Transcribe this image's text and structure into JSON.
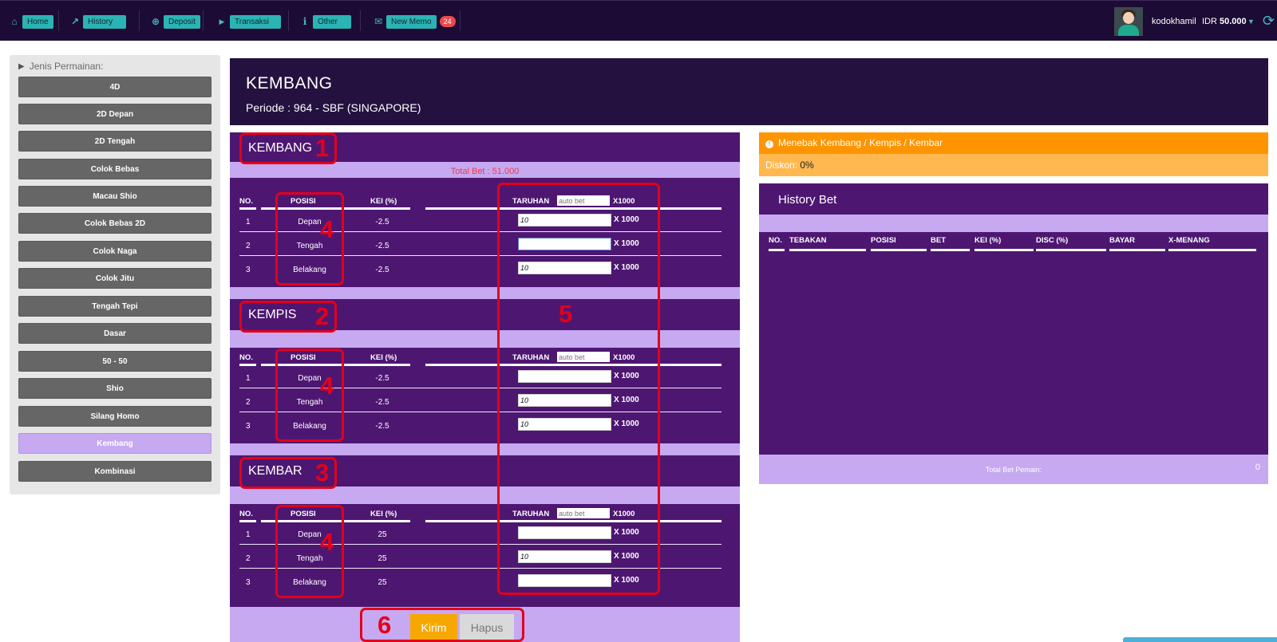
{
  "nav": {
    "items": [
      {
        "label": "Home",
        "icon": "home-icon",
        "glyph": "⌂"
      },
      {
        "label": "History",
        "icon": "chart-line-icon",
        "glyph": "↗"
      },
      {
        "label": "Deposit",
        "icon": "plus-circle-icon",
        "glyph": "⊕"
      },
      {
        "label": "Transaksi",
        "icon": "play-icon",
        "glyph": "▶"
      },
      {
        "label": "Other",
        "icon": "info-icon",
        "glyph": "i"
      },
      {
        "label": "New Memo",
        "icon": "envelope-icon",
        "glyph": "✉"
      }
    ],
    "memo_count": "24",
    "username": "kodokhamil",
    "currency": "IDR",
    "balance": "50.000"
  },
  "sidebar": {
    "heading": "Jenis Permainan:",
    "items": [
      "4D",
      "2D Depan",
      "2D Tengah",
      "Colok Bebas",
      "Macau Shio",
      "Colok Bebas 2D",
      "Colok Naga",
      "Colok Jitu",
      "Tengah Tepi",
      "Dasar",
      "50 - 50",
      "Shio",
      "Silang Homo",
      "Kembang",
      "Kombinasi"
    ],
    "active": "Kembang"
  },
  "header": {
    "title": "KEMBANG",
    "period": "Periode : 964 - SBF (SINGAPORE)"
  },
  "bet": {
    "total_bet": "Total Bet : 51.000",
    "columns": {
      "no": "NO.",
      "posisi": "POSISI",
      "kei": "KEI (%)",
      "taruhan": "TARUHAN",
      "x1000_head": "X1000",
      "x1000_row": "X 1000"
    },
    "autobet_placeholder": "auto bet",
    "sections": [
      {
        "title": "KEMBANG",
        "rows": [
          {
            "no": "1",
            "posisi": "Depan",
            "kei": "-2.5",
            "value": "10"
          },
          {
            "no": "2",
            "posisi": "Tengah",
            "kei": "-2.5",
            "value": ""
          },
          {
            "no": "3",
            "posisi": "Belakang",
            "kei": "-2.5",
            "value": "10"
          }
        ]
      },
      {
        "title": "KEMPIS",
        "rows": [
          {
            "no": "1",
            "posisi": "Depan",
            "kei": "-2.5",
            "value": ""
          },
          {
            "no": "2",
            "posisi": "Tengah",
            "kei": "-2.5",
            "value": "10"
          },
          {
            "no": "3",
            "posisi": "Belakang",
            "kei": "-2.5",
            "value": "10"
          }
        ]
      },
      {
        "title": "KEMBAR",
        "rows": [
          {
            "no": "1",
            "posisi": "Depan",
            "kei": "25",
            "value": ""
          },
          {
            "no": "2",
            "posisi": "Tengah",
            "kei": "25",
            "value": "10"
          },
          {
            "no": "3",
            "posisi": "Belakang",
            "kei": "25",
            "value": ""
          }
        ]
      }
    ],
    "kirim_label": "Kirim",
    "hapus_label": "Hapus"
  },
  "annotations": [
    "1",
    "2",
    "3",
    "4",
    "4",
    "4",
    "5",
    "6"
  ],
  "info": {
    "guess_text": "Menebak Kembang / Kempis / Kembar",
    "diskon_label": "Diskon:",
    "diskon_value": "0%"
  },
  "history": {
    "title": "History Bet",
    "columns": [
      "NO.",
      "TEBAKAN",
      "POSISI",
      "BET",
      "KEI (%)",
      "DISC (%)",
      "BAYAR",
      "X-MENANG"
    ],
    "total_label": "Total Bet Pemain:",
    "total_value": "0"
  },
  "colors": {
    "nav_bg": "#1c0b34",
    "panel_purple": "#4d1771",
    "lavender": "#c6a9f0",
    "orange": "#fe9500",
    "annotation_red": "#e3001b"
  }
}
